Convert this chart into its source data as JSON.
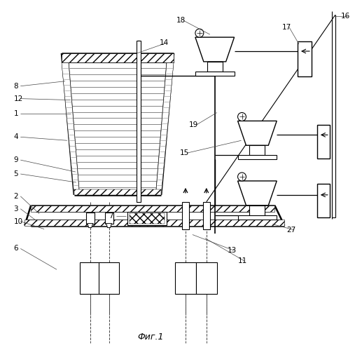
{
  "bg_color": "#ffffff",
  "fig_label": "Фиг.1"
}
